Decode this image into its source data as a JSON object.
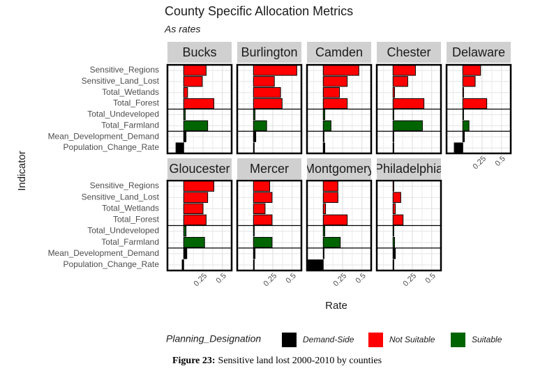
{
  "chart_data": {
    "type": "bar",
    "orientation": "horizontal",
    "title": "County Specific Allocation Metrics",
    "subtitle": "As rates",
    "x_label": "Rate",
    "y_label": "Indicator",
    "categories": [
      "Sensitive_Regions",
      "Sensitive_Land_Lost",
      "Total_Wetlands",
      "Total_Forest",
      "Total_Undeveloped",
      "Total_Farmland",
      "Mean_Development_Demand",
      "Population_Change_Rate"
    ],
    "legend_title": "Planning_Designation",
    "series": [
      {
        "name": "Demand-Side",
        "color": "#000000",
        "categories": [
          "Mean_Development_Demand",
          "Population_Change_Rate"
        ]
      },
      {
        "name": "Not Suitable",
        "color": "#ff0000",
        "categories": [
          "Sensitive_Regions",
          "Sensitive_Land_Lost",
          "Total_Wetlands",
          "Total_Forest"
        ]
      },
      {
        "name": "Suitable",
        "color": "#006400",
        "categories": [
          "Total_Undeveloped",
          "Total_Farmland"
        ]
      }
    ],
    "facets": [
      {
        "name": "Bucks",
        "values": [
          0.29,
          0.24,
          0.05,
          0.39,
          0.02,
          0.31,
          0.03,
          -0.1
        ]
      },
      {
        "name": "Burlington",
        "values": [
          0.56,
          0.27,
          0.35,
          0.37,
          0.02,
          0.17,
          0.03,
          0.01
        ]
      },
      {
        "name": "Camden",
        "values": [
          0.46,
          0.31,
          0.21,
          0.31,
          0.02,
          0.1,
          0.01,
          0.02
        ]
      },
      {
        "name": "Chester",
        "values": [
          0.29,
          0.19,
          0.02,
          0.4,
          0.01,
          0.38,
          0.01,
          0.01
        ]
      },
      {
        "name": "Delaware",
        "values": [
          0.23,
          0.16,
          0.01,
          0.31,
          0.01,
          0.08,
          0.02,
          -0.11
        ]
      },
      {
        "name": "Gloucester",
        "values": [
          0.39,
          0.31,
          0.25,
          0.29,
          0.03,
          0.27,
          0.04,
          -0.02
        ]
      },
      {
        "name": "Mercer",
        "values": [
          0.21,
          0.24,
          0.15,
          0.24,
          0.01,
          0.24,
          0.02,
          0.01
        ]
      },
      {
        "name": "Montgomery",
        "values": [
          0.19,
          0.19,
          0.03,
          0.31,
          0.02,
          0.22,
          0.01,
          -0.2
        ]
      },
      {
        "name": "Philadelphia",
        "values": [
          0.01,
          0.1,
          0.03,
          0.13,
          0.01,
          0.02,
          0.03,
          0.01
        ]
      }
    ],
    "xlim": [
      -0.21,
      0.62
    ],
    "xticks": [
      0.25,
      0.5
    ],
    "grid": true,
    "legend_position": "bottom",
    "caption": {
      "label": "Figure 23:",
      "text": "Sensitive land lost 2000-2010 by counties"
    }
  }
}
